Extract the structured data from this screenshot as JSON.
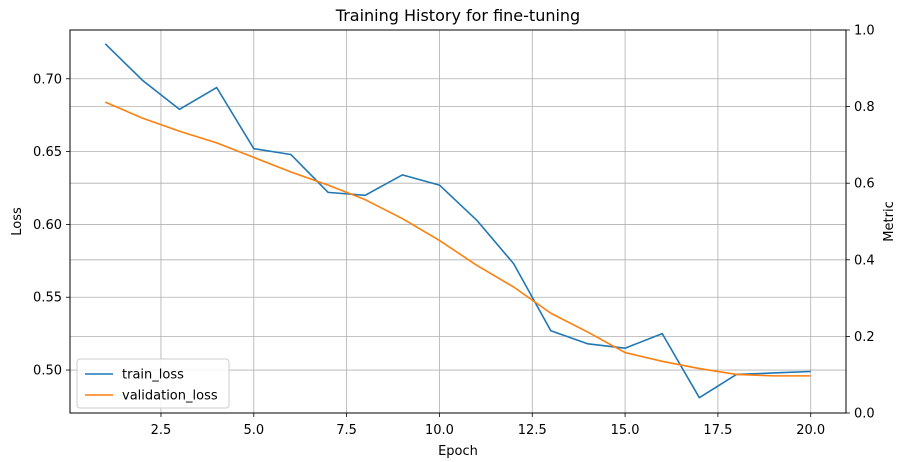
{
  "chart_data": {
    "type": "line",
    "title": "Training History for fine-tuning",
    "xlabel": "Epoch",
    "ylabel": "Loss",
    "y2label": "Metric",
    "xlim": [
      0.05,
      20.95
    ],
    "ylim": [
      0.4705,
      0.7335
    ],
    "y2lim": [
      0,
      1
    ],
    "x_ticks": [
      2.5,
      5.0,
      7.5,
      10.0,
      12.5,
      15.0,
      17.5,
      20.0
    ],
    "x_tick_labels": [
      "2.5",
      "5.0",
      "7.5",
      "10.0",
      "12.5",
      "15.0",
      "17.5",
      "20.0"
    ],
    "y_ticks": [
      0.5,
      0.55,
      0.6,
      0.65,
      0.7
    ],
    "y_tick_labels": [
      "0.50",
      "0.55",
      "0.60",
      "0.65",
      "0.70"
    ],
    "y2_ticks": [
      0.0,
      0.2,
      0.4,
      0.6,
      0.8,
      1.0
    ],
    "y2_tick_labels": [
      "0.0",
      "0.2",
      "0.4",
      "0.6",
      "0.8",
      "1.0"
    ],
    "grid": true,
    "legend_position": "lower-left",
    "x": [
      1,
      2,
      3,
      4,
      5,
      6,
      7,
      8,
      9,
      10,
      11,
      12,
      13,
      14,
      15,
      16,
      17,
      18,
      19,
      20
    ],
    "series": [
      {
        "name": "train_loss",
        "color": "#1f77b4",
        "values": [
          0.724,
          0.699,
          0.679,
          0.694,
          0.652,
          0.648,
          0.622,
          0.62,
          0.634,
          0.627,
          0.603,
          0.573,
          0.527,
          0.518,
          0.515,
          0.525,
          0.481,
          0.497,
          0.498,
          0.499
        ]
      },
      {
        "name": "validation_loss",
        "color": "#ff7f0e",
        "values": [
          0.684,
          0.673,
          0.664,
          0.656,
          0.646,
          0.636,
          0.627,
          0.617,
          0.604,
          0.589,
          0.572,
          0.557,
          0.539,
          0.526,
          0.512,
          0.506,
          0.501,
          0.497,
          0.496,
          0.496
        ]
      }
    ]
  }
}
